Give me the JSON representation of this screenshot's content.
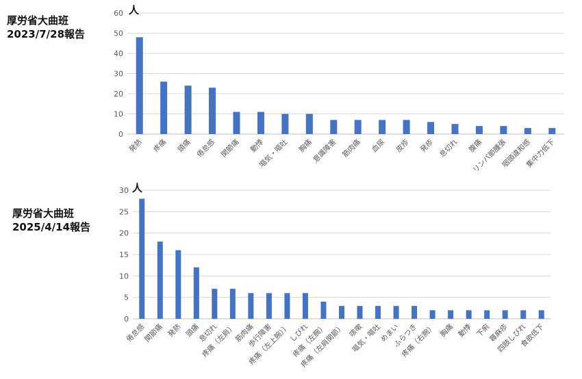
{
  "chart_data": [
    {
      "type": "bar",
      "title": "厚労省大曲班\n2023/7/28報告",
      "title_lines": [
        "厚労省大曲班",
        "2023/7/28報告"
      ],
      "ylabel": "人",
      "ylim": [
        0,
        60
      ],
      "yticks": [
        0,
        10,
        20,
        30,
        40,
        50,
        60
      ],
      "grid": true,
      "bar_color": "#4472C4",
      "categories": [
        "発熱",
        "疼痛",
        "頭痛",
        "倦怠感",
        "関節痛",
        "動悸",
        "嘔気・嘔吐",
        "胸痛",
        "意識障害",
        "筋肉痛",
        "血尿",
        "皮疹",
        "発疹",
        "息切れ",
        "腹痛",
        "リンパ節腫張",
        "咽頭違和感",
        "集中力低下"
      ],
      "values": [
        48,
        26,
        24,
        23,
        11,
        11,
        10,
        10,
        7,
        7,
        7,
        7,
        6,
        5,
        4,
        4,
        3,
        3
      ]
    },
    {
      "type": "bar",
      "title": "厚労省大曲班\n2025/4/14報告",
      "title_lines": [
        "厚労省大曲班",
        "2025/4/14報告"
      ],
      "ylabel": "人",
      "ylim": [
        0,
        30
      ],
      "yticks": [
        0,
        5,
        10,
        15,
        20,
        25,
        30
      ],
      "grid": true,
      "bar_color": "#4472C4",
      "categories": [
        "倦怠感",
        "関節痛",
        "発熱",
        "頭痛",
        "息切れ",
        "疼痛（左肩）",
        "筋肉痛",
        "歩行障害",
        "疼痛（左上腕））",
        "しびれ",
        "疼痛（左腕）",
        "疼痛（左肩関節）",
        "咳嗽",
        "嘔気・嘔吐",
        "めまい",
        "ふらつき",
        "疼痛（右腕）",
        "胸痛",
        "動悸",
        "下痢",
        "蕁麻疹",
        "四肢しびれ",
        "食欲低下"
      ],
      "values": [
        28,
        18,
        16,
        12,
        7,
        7,
        6,
        6,
        6,
        6,
        4,
        3,
        3,
        3,
        3,
        3,
        2,
        2,
        2,
        2,
        2,
        2,
        2
      ]
    }
  ]
}
